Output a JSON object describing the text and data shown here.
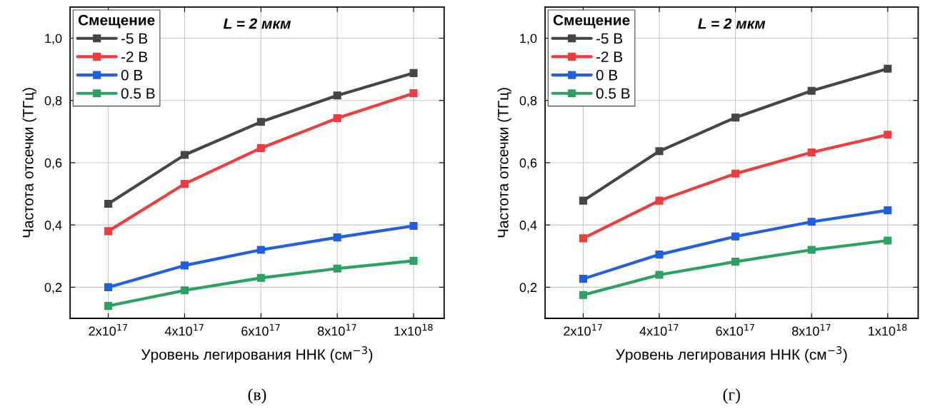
{
  "chart_data": [
    {
      "type": "line",
      "title": "L = 2 мкм",
      "xlabel": "Уровень легирования ННК (см$^{−3}$)",
      "ylabel": "Частота отсечки (ТГц)",
      "legend_title": "Смещение",
      "legend": "top left",
      "marker": "square",
      "line_style": "solid",
      "grid": true,
      "annotations": [
        "(в)"
      ],
      "x": [
        2e+17,
        4e+17,
        6e+17,
        8e+17,
        1e+18
      ],
      "xlim": [
        1e+17,
        1.08e+18
      ],
      "xticks": [
        {
          "value": 2e+17,
          "label": "2x10$^{17}$"
        },
        {
          "value": 4e+17,
          "label": "4x10$^{17}$"
        },
        {
          "value": 6e+17,
          "label": "6x10$^{17}$"
        },
        {
          "value": 8e+17,
          "label": "8x10$^{17}$"
        },
        {
          "value": 1e+18,
          "label": "1x10$^{18}$"
        }
      ],
      "ylim": [
        0.1,
        1.1
      ],
      "yticks": [
        {
          "value": 0.2,
          "label": "0,2"
        },
        {
          "value": 0.4,
          "label": "0,4"
        },
        {
          "value": 0.6,
          "label": "0,6"
        },
        {
          "value": 0.8,
          "label": "0,8"
        },
        {
          "value": 1.0,
          "label": "1,0"
        }
      ],
      "series": [
        {
          "name": "-5 В",
          "color": "#454545",
          "values": [
            0.468,
            0.625,
            0.731,
            0.816,
            0.888
          ]
        },
        {
          "name": "-2 В",
          "color": "#f03c3c",
          "values": [
            0.38,
            0.532,
            0.647,
            0.743,
            0.823
          ]
        },
        {
          "name": "0 В",
          "color": "#1f5fe0",
          "values": [
            0.2,
            0.27,
            0.32,
            0.36,
            0.397
          ]
        },
        {
          "name": "0.5 В",
          "color": "#2aa260",
          "values": [
            0.14,
            0.19,
            0.23,
            0.26,
            0.285
          ]
        }
      ]
    },
    {
      "type": "line",
      "title": "L = 2 мкм",
      "xlabel": "Уровень легирования ННК (см$^{−3}$)",
      "ylabel": "Частота отсечки (ТГц)",
      "legend_title": "Смещение",
      "legend": "top left",
      "marker": "square",
      "line_style": "solid",
      "grid": true,
      "annotations": [
        "(г)"
      ],
      "x": [
        2e+17,
        4e+17,
        6e+17,
        8e+17,
        1e+18
      ],
      "xlim": [
        1e+17,
        1.08e+18
      ],
      "xticks": [
        {
          "value": 2e+17,
          "label": "2x10$^{17}$"
        },
        {
          "value": 4e+17,
          "label": "4x10$^{17}$"
        },
        {
          "value": 6e+17,
          "label": "6x10$^{17}$"
        },
        {
          "value": 8e+17,
          "label": "8x10$^{17}$"
        },
        {
          "value": 1e+18,
          "label": "1x10$^{18}$"
        }
      ],
      "ylim": [
        0.1,
        1.1
      ],
      "yticks": [
        {
          "value": 0.2,
          "label": "0,2"
        },
        {
          "value": 0.4,
          "label": "0,4"
        },
        {
          "value": 0.6,
          "label": "0,6"
        },
        {
          "value": 0.8,
          "label": "0,8"
        },
        {
          "value": 1.0,
          "label": "1,0"
        }
      ],
      "series": [
        {
          "name": "-5 В",
          "color": "#454545",
          "values": [
            0.478,
            0.637,
            0.745,
            0.831,
            0.902
          ]
        },
        {
          "name": "-2 В",
          "color": "#f03c3c",
          "values": [
            0.357,
            0.478,
            0.565,
            0.633,
            0.69
          ]
        },
        {
          "name": "0 В",
          "color": "#1f5fe0",
          "values": [
            0.227,
            0.305,
            0.363,
            0.41,
            0.447
          ]
        },
        {
          "name": "0.5 В",
          "color": "#2aa260",
          "values": [
            0.175,
            0.24,
            0.282,
            0.32,
            0.35
          ]
        }
      ]
    }
  ]
}
